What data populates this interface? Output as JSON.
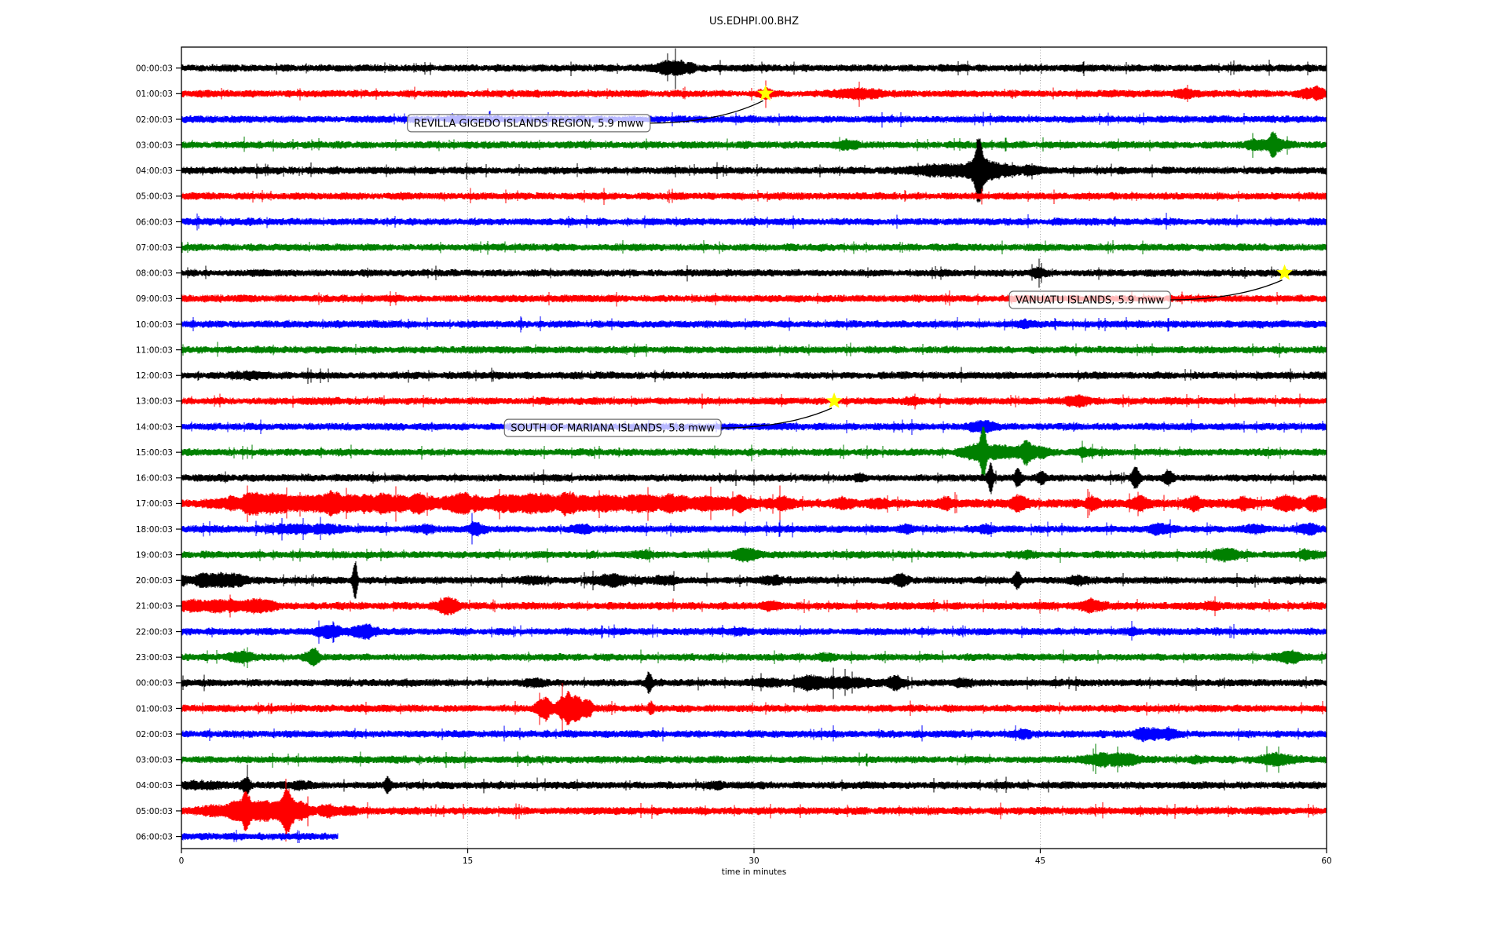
{
  "title": "US.EDHPI.00.BHZ",
  "axes": {
    "xlabel": "time in minutes",
    "x_ticks": [
      0,
      15,
      30,
      45,
      60
    ],
    "x_gridlines": [
      15,
      30,
      45
    ],
    "xlim": [
      0,
      60
    ]
  },
  "colors": {
    "trace_cycle": [
      "#000000",
      "#ff0000",
      "#0000ff",
      "#008000"
    ],
    "grid": "#999999",
    "spine": "#000000",
    "tick_text": "#000000",
    "star_fill": "#ffff00",
    "annotation_fill": "rgba(255,255,255,0.72)",
    "annotation_border": "#6e6e6e",
    "annotation_text": "#000000",
    "leader_line": "#000000"
  },
  "chart_data": {
    "type": "line",
    "subtype": "helicorder_seismogram_dayplot",
    "station_id": "US.EDHPI.00.BHZ",
    "title": "US.EDHPI.00.BHZ",
    "xlabel": "time in minutes",
    "xlim": [
      0,
      60
    ],
    "x_ticks": [
      0,
      15,
      30,
      45,
      60
    ],
    "minutes_per_trace": 60,
    "grid": "vertical dotted lines at 15, 30, 45 minutes",
    "legend": "none",
    "trace_color_cycle": [
      "#000000",
      "#ff0000",
      "#0000ff",
      "#008000"
    ],
    "default_noise_amp": 3.6,
    "rows": [
      {
        "label": "00:00:03",
        "end_minute": 60,
        "bursts": [
          [
            25.6,
            0.5,
            2.6
          ],
          [
            26.4,
            0.3,
            2.0
          ]
        ]
      },
      {
        "label": "01:00:03",
        "end_minute": 60,
        "bursts": [
          [
            30.6,
            0.3,
            1.8
          ],
          [
            35.6,
            0.8,
            1.9
          ],
          [
            52.6,
            0.4,
            1.9
          ],
          [
            59.3,
            0.5,
            2.2
          ]
        ]
      },
      {
        "label": "02:00:03",
        "end_minute": 60,
        "bursts": [
          [
            14.6,
            0.3,
            1.5
          ]
        ]
      },
      {
        "label": "03:00:03",
        "end_minute": 60,
        "bursts": [
          [
            34.8,
            0.4,
            1.7
          ],
          [
            56.9,
            0.7,
            2.4
          ],
          [
            57.2,
            0.12,
            3.6
          ]
        ]
      },
      {
        "label": "04:00:03",
        "end_minute": 60,
        "bursts": [
          [
            39.9,
            1.2,
            2.1
          ],
          [
            41.8,
            0.12,
            11
          ],
          [
            41.8,
            0.5,
            3.0
          ],
          [
            42.8,
            0.8,
            2.2
          ],
          [
            44.5,
            0.4,
            1.6
          ]
        ]
      },
      {
        "label": "05:00:03",
        "end_minute": 60,
        "bursts": []
      },
      {
        "label": "06:00:03",
        "end_minute": 60,
        "bursts": []
      },
      {
        "label": "07:00:03",
        "end_minute": 60,
        "bursts": []
      },
      {
        "label": "08:00:03",
        "end_minute": 60,
        "bursts": [
          [
            44.9,
            0.25,
            1.7
          ]
        ]
      },
      {
        "label": "09:00:03",
        "end_minute": 60,
        "bursts": []
      },
      {
        "label": "10:00:03",
        "end_minute": 60,
        "bursts": [
          [
            44.2,
            0.3,
            1.5
          ]
        ]
      },
      {
        "label": "11:00:03",
        "end_minute": 60,
        "bursts": []
      },
      {
        "label": "12:00:03",
        "end_minute": 60,
        "bursts": [
          [
            3.4,
            0.7,
            1.6
          ]
        ]
      },
      {
        "label": "13:00:03",
        "end_minute": 60,
        "bursts": [
          [
            38.2,
            0.3,
            1.7
          ],
          [
            46.9,
            0.4,
            2.2
          ]
        ]
      },
      {
        "label": "14:00:03",
        "end_minute": 60,
        "bursts": [
          [
            41.9,
            0.4,
            2.3
          ]
        ]
      },
      {
        "label": "15:00:03",
        "end_minute": 60,
        "bursts": [
          [
            41.6,
            0.5,
            2.4
          ],
          [
            42.0,
            0.1,
            8
          ],
          [
            43.2,
            0.9,
            2.6
          ],
          [
            44.3,
            0.15,
            3.5
          ],
          [
            44.9,
            0.4,
            2.0
          ],
          [
            47.3,
            0.3,
            1.8
          ]
        ]
      },
      {
        "label": "16:00:03",
        "end_minute": 60,
        "bursts": [
          [
            35.5,
            0.2,
            1.8
          ],
          [
            42.4,
            0.1,
            4.5
          ],
          [
            43.8,
            0.12,
            3.2
          ],
          [
            45.1,
            0.15,
            2.6
          ],
          [
            50.0,
            0.15,
            3.5
          ],
          [
            51.7,
            0.15,
            2.6
          ]
        ]
      },
      {
        "label": "17:00:03",
        "end_minute": 60,
        "base_amp": 4.4,
        "bursts": [
          [
            3.2,
            0.8,
            2.2
          ],
          [
            4.5,
            0.6,
            2.6
          ],
          [
            6.0,
            0.9,
            2.3
          ],
          [
            7.8,
            0.5,
            2.8
          ],
          [
            9.3,
            0.8,
            2.4
          ],
          [
            11.0,
            0.7,
            2.6
          ],
          [
            12.6,
            0.5,
            2.4
          ],
          [
            14.6,
            0.6,
            2.9
          ],
          [
            16.4,
            0.7,
            2.3
          ],
          [
            18.3,
            0.8,
            2.6
          ],
          [
            20.2,
            0.6,
            2.9
          ],
          [
            22.2,
            0.7,
            2.4
          ],
          [
            24.1,
            0.6,
            2.8
          ],
          [
            25.8,
            0.5,
            2.4
          ],
          [
            27.6,
            0.6,
            2.3
          ],
          [
            29.3,
            0.5,
            2.2
          ],
          [
            31.5,
            0.4,
            1.9
          ],
          [
            34.6,
            0.3,
            1.9
          ],
          [
            36.5,
            0.3,
            1.8
          ],
          [
            40.1,
            0.25,
            1.9
          ],
          [
            43.9,
            0.3,
            2.1
          ],
          [
            47.7,
            0.2,
            2.6
          ],
          [
            50.2,
            0.3,
            1.9
          ],
          [
            53.1,
            0.25,
            2.1
          ],
          [
            55.6,
            0.3,
            2.0
          ],
          [
            57.9,
            0.4,
            2.4
          ],
          [
            59.4,
            0.3,
            2.4
          ]
        ]
      },
      {
        "label": "18:00:03",
        "end_minute": 60,
        "bursts": [
          [
            5.6,
            0.9,
            1.7
          ],
          [
            7.6,
            0.6,
            1.9
          ],
          [
            12.8,
            0.4,
            1.7
          ],
          [
            15.5,
            0.3,
            2.3
          ],
          [
            21.0,
            0.4,
            1.6
          ],
          [
            38.0,
            0.3,
            1.6
          ],
          [
            42.0,
            0.3,
            1.8
          ],
          [
            51.2,
            0.4,
            2.0
          ],
          [
            56.2,
            0.4,
            1.9
          ],
          [
            59.0,
            0.3,
            2.0
          ]
        ]
      },
      {
        "label": "19:00:03",
        "end_minute": 60,
        "bursts": [
          [
            24.2,
            0.3,
            1.8
          ],
          [
            29.6,
            0.4,
            2.3
          ],
          [
            44.2,
            0.25,
            1.7
          ],
          [
            54.6,
            0.6,
            2.1
          ],
          [
            58.9,
            0.3,
            1.8
          ]
        ]
      },
      {
        "label": "20:00:03",
        "end_minute": 60,
        "bursts": [
          [
            0.8,
            1.2,
            2.0
          ],
          [
            2.5,
            0.8,
            1.8
          ],
          [
            9.1,
            0.08,
            7
          ],
          [
            18.5,
            0.4,
            1.7
          ],
          [
            22.8,
            0.8,
            2.1
          ],
          [
            25.4,
            0.4,
            1.9
          ],
          [
            31.0,
            0.4,
            1.8
          ],
          [
            37.7,
            0.3,
            2.1
          ],
          [
            43.8,
            0.12,
            3.8
          ],
          [
            47.1,
            0.3,
            1.7
          ]
        ]
      },
      {
        "label": "21:00:03",
        "end_minute": 60,
        "base_amp": 3.8,
        "bursts": [
          [
            1.2,
            1.5,
            2.1
          ],
          [
            3.8,
            0.8,
            2.0
          ],
          [
            13.9,
            0.4,
            2.6
          ],
          [
            30.9,
            0.3,
            1.7
          ],
          [
            47.7,
            0.4,
            2.3
          ],
          [
            54.0,
            0.3,
            1.6
          ]
        ]
      },
      {
        "label": "22:00:03",
        "end_minute": 60,
        "bursts": [
          [
            7.8,
            0.5,
            2.3
          ],
          [
            9.6,
            0.4,
            2.7
          ],
          [
            29.2,
            0.3,
            1.6
          ],
          [
            49.9,
            0.25,
            1.6
          ]
        ]
      },
      {
        "label": "23:00:03",
        "end_minute": 60,
        "bursts": [
          [
            3.1,
            0.4,
            2.1
          ],
          [
            6.9,
            0.3,
            2.6
          ],
          [
            33.8,
            0.3,
            1.6
          ],
          [
            58.1,
            0.4,
            1.9
          ]
        ]
      },
      {
        "label": "00:00:03",
        "end_minute": 60,
        "bursts": [
          [
            18.3,
            0.4,
            1.8
          ],
          [
            24.5,
            0.1,
            4.2
          ],
          [
            30.6,
            0.4,
            1.7
          ],
          [
            33.0,
            0.5,
            2.4
          ],
          [
            34.9,
            0.8,
            2.4
          ],
          [
            37.4,
            0.3,
            2.6
          ],
          [
            41.0,
            0.3,
            1.7
          ]
        ]
      },
      {
        "label": "01:00:03",
        "end_minute": 60,
        "bursts": [
          [
            19.0,
            0.25,
            4.5
          ],
          [
            20.2,
            0.3,
            5.0
          ],
          [
            20.8,
            0.3,
            3.0
          ],
          [
            21.3,
            0.15,
            3.2
          ],
          [
            24.6,
            0.1,
            2.6
          ]
        ]
      },
      {
        "label": "02:00:03",
        "end_minute": 60,
        "bursts": [
          [
            44.1,
            0.3,
            1.6
          ],
          [
            50.8,
            0.5,
            2.4
          ],
          [
            51.9,
            0.3,
            2.0
          ]
        ]
      },
      {
        "label": "03:00:03",
        "end_minute": 60,
        "bursts": [
          [
            48.4,
            0.7,
            2.3
          ],
          [
            49.7,
            0.4,
            2.0
          ],
          [
            53.2,
            0.3,
            1.6
          ],
          [
            57.4,
            0.6,
            2.2
          ]
        ]
      },
      {
        "label": "04:00:03",
        "end_minute": 60,
        "bursts": [
          [
            1.0,
            0.8,
            1.6
          ],
          [
            3.4,
            0.15,
            2.8
          ],
          [
            6.0,
            0.5,
            1.7
          ],
          [
            10.8,
            0.1,
            3.4
          ],
          [
            28.0,
            0.3,
            1.5
          ]
        ]
      },
      {
        "label": "05:00:03",
        "end_minute": 60,
        "base_amp": 3.8,
        "bursts": [
          [
            1.5,
            0.6,
            2.0
          ],
          [
            2.8,
            0.3,
            3.2
          ],
          [
            3.4,
            0.15,
            5.0
          ],
          [
            4.6,
            0.8,
            3.4
          ],
          [
            5.6,
            0.2,
            5.0
          ],
          [
            6.4,
            0.4,
            2.6
          ],
          [
            7.6,
            0.3,
            2.0
          ],
          [
            8.8,
            0.3,
            1.7
          ]
        ]
      },
      {
        "label": "06:00:03",
        "end_minute": 8.2,
        "bursts": []
      }
    ],
    "events": [
      {
        "label": "REVILLA GIGEDO ISLANDS REGION, 5.9 mww",
        "row_index": 1,
        "minute": 30.6,
        "box_minute_center": 18.2,
        "box_row_center": 2.15
      },
      {
        "label": "VANUATU ISLANDS, 5.9 mww",
        "row_index": 8,
        "minute": 57.8,
        "box_minute_center": 47.6,
        "box_row_center": 9.05
      },
      {
        "label": "SOUTH OF MARIANA ISLANDS, 5.8 mww",
        "row_index": 13,
        "minute": 34.2,
        "box_minute_center": 22.6,
        "box_row_center": 14.05
      }
    ]
  }
}
